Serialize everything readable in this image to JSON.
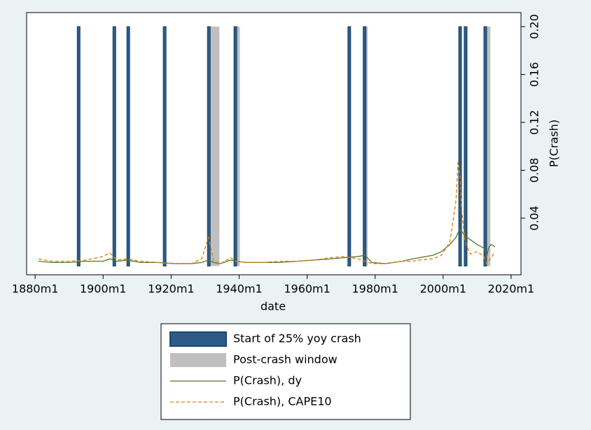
{
  "chart_data": {
    "type": "line",
    "x_label": "date",
    "y_label": "P(Crash)",
    "xlim": [
      1877.5,
      2022.9
    ],
    "xticks": [
      {
        "value": 1880,
        "label": "1880m1"
      },
      {
        "value": 1900,
        "label": "1900m1"
      },
      {
        "value": 1920,
        "label": "1920m1"
      },
      {
        "value": 1940,
        "label": "1940m1"
      },
      {
        "value": 1960,
        "label": "1960m1"
      },
      {
        "value": 1980,
        "label": "1980m1"
      },
      {
        "value": 2000,
        "label": "2000m1"
      },
      {
        "value": 2020,
        "label": "2020m1"
      }
    ],
    "ylim": [
      -0.0073,
      0.2117
    ],
    "yticks": [
      0.04,
      0.08,
      0.12,
      0.16,
      {
        "value": 0.2,
        "label": "0.20"
      }
    ],
    "y_axis_side": "right",
    "x": [
      1881,
      1885,
      1890,
      1895,
      1900,
      1902,
      1904,
      1907,
      1911,
      1916,
      1921,
      1926,
      1929,
      1931,
      1932.5,
      1934.5,
      1937.5,
      1939,
      1942,
      1947,
      1952,
      1957,
      1962,
      1967,
      1971,
      1975,
      1977,
      1979,
      1983,
      1988,
      1991,
      1993,
      1997,
      1999.5,
      2002,
      2003.8,
      2004.4,
      2005,
      2005.5,
      2006.5,
      2008,
      2010,
      2012,
      2012.8,
      2013.5,
      2014.2,
      2014.8,
      2015.3
    ],
    "series": [
      {
        "name": "Start of 25% yoy crash",
        "kind": "crash",
        "color": "#1a476f",
        "x": [
          1892.8,
          1903.3,
          1907.4,
          1918.1,
          1931.1,
          1938.9,
          1972.4,
          1976.9,
          2005.0,
          2006.6,
          2012.4
        ]
      },
      {
        "name": "Post-crash window",
        "kind": "window",
        "color": "#bfbfbf",
        "start": [
          1931.2,
          1939.0,
          1977.0,
          2006.7,
          2012.5
        ],
        "end": [
          1934.2,
          1940.2,
          1977.8,
          2007.2,
          2013.9
        ]
      },
      {
        "name": "P(Crash), dy",
        "kind": "line",
        "color": "#55752f",
        "dashed": false,
        "values": [
          0.004,
          0.003,
          0.003,
          0.004,
          0.004,
          0.006,
          0.004,
          0.005,
          0.003,
          0.003,
          0.002,
          0.002,
          0.003,
          0.005,
          0.003,
          0.002,
          0.005,
          0.004,
          0.003,
          0.003,
          0.003,
          0.004,
          0.005,
          0.006,
          0.007,
          0.008,
          0.009,
          0.003,
          0.002,
          0.004,
          0.006,
          0.007,
          0.009,
          0.012,
          0.018,
          0.024,
          0.028,
          0.031,
          0.029,
          0.025,
          0.022,
          0.018,
          0.015,
          0.008,
          0.016,
          0.018,
          0.017,
          0.016
        ]
      },
      {
        "name": "P(Crash), CAPE10",
        "kind": "line",
        "color": "#e37e00",
        "dashed": true,
        "values": [
          0.006,
          0.004,
          0.004,
          0.005,
          0.008,
          0.011,
          0.005,
          0.006,
          0.004,
          0.003,
          0.002,
          0.002,
          0.006,
          0.024,
          0.004,
          0.002,
          0.007,
          0.004,
          0.003,
          0.003,
          0.004,
          0.004,
          0.005,
          0.007,
          0.008,
          0.006,
          0.004,
          0.002,
          0.002,
          0.004,
          0.004,
          0.005,
          0.006,
          0.009,
          0.02,
          0.055,
          0.087,
          0.075,
          0.045,
          0.02,
          0.01,
          0.012,
          0.008,
          0.002,
          0.005,
          0.007,
          0.01,
          0.012
        ]
      }
    ]
  }
}
